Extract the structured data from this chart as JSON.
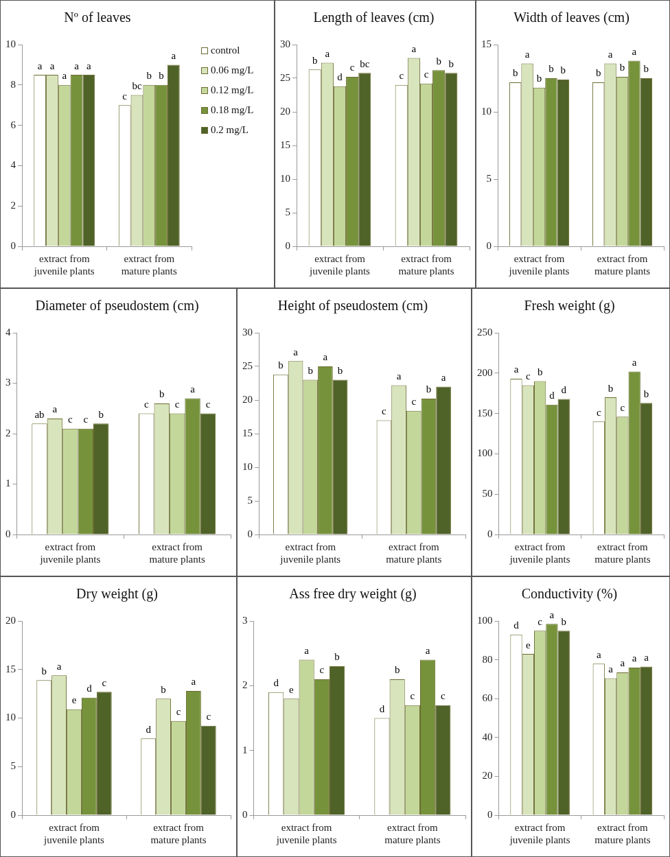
{
  "chart_data": [
    {
      "type": "bar",
      "title": "Nº of leaves",
      "categories": [
        "extract from juvenile plants",
        "extract from mature plants"
      ],
      "ylim": [
        0,
        10
      ],
      "yticks": [
        0,
        2,
        4,
        6,
        8,
        10
      ],
      "legend": "right",
      "series": [
        {
          "name": "control",
          "color": "#ffffff",
          "values": [
            8.5,
            7
          ],
          "value_labels": [
            "a",
            "c"
          ]
        },
        {
          "name": "0.06 mg/L",
          "color": "#d8e4bc",
          "values": [
            8.5,
            7.5
          ],
          "value_labels": [
            "a",
            "bc"
          ]
        },
        {
          "name": "0.12 mg/L",
          "color": "#c4d79b",
          "values": [
            8,
            8
          ],
          "value_labels": [
            "a",
            "b"
          ]
        },
        {
          "name": "0.18 mg/L",
          "color": "#76933c",
          "values": [
            8.5,
            8
          ],
          "value_labels": [
            "a",
            "b"
          ]
        },
        {
          "name": "0.2 mg/L",
          "color": "#4f6228",
          "values": [
            8.5,
            9
          ],
          "value_labels": [
            "a",
            "a"
          ]
        }
      ]
    },
    {
      "type": "bar",
      "title": "Length of leaves (cm)",
      "categories": [
        "extract from juvenile plants",
        "extract from mature plants"
      ],
      "ylim": [
        0,
        30
      ],
      "yticks": [
        0,
        5,
        10,
        15,
        20,
        25,
        30
      ],
      "series": [
        {
          "color": "#ffffff",
          "values": [
            26.3,
            24
          ],
          "value_labels": [
            "b",
            "c"
          ]
        },
        {
          "color": "#d8e4bc",
          "values": [
            27.3,
            28
          ],
          "value_labels": [
            "a",
            "a"
          ]
        },
        {
          "color": "#c4d79b",
          "values": [
            23.8,
            24.2
          ],
          "value_labels": [
            "d",
            "c"
          ]
        },
        {
          "color": "#76933c",
          "values": [
            25.2,
            26.2
          ],
          "value_labels": [
            "c",
            "b"
          ]
        },
        {
          "color": "#4f6228",
          "values": [
            25.8,
            25.8
          ],
          "value_labels": [
            "bc",
            "b"
          ]
        }
      ]
    },
    {
      "type": "bar",
      "title": "Width of leaves (cm)",
      "categories": [
        "extract from juvenile plants",
        "extract from mature plants"
      ],
      "ylim": [
        0,
        15
      ],
      "yticks": [
        0,
        5,
        10,
        15
      ],
      "series": [
        {
          "color": "#ffffff",
          "values": [
            12.2,
            12.2
          ],
          "value_labels": [
            "b",
            "b"
          ]
        },
        {
          "color": "#d8e4bc",
          "values": [
            13.6,
            13.6
          ],
          "value_labels": [
            "a",
            "a"
          ]
        },
        {
          "color": "#c4d79b",
          "values": [
            11.8,
            12.6
          ],
          "value_labels": [
            "b",
            "b"
          ]
        },
        {
          "color": "#76933c",
          "values": [
            12.5,
            13.8
          ],
          "value_labels": [
            "b",
            "a"
          ]
        },
        {
          "color": "#4f6228",
          "values": [
            12.4,
            12.5
          ],
          "value_labels": [
            "b",
            "b"
          ]
        }
      ]
    },
    {
      "type": "bar",
      "title": "Diameter of pseudostem (cm)",
      "categories": [
        "extract from juvenile plants",
        "extract from mature plants"
      ],
      "ylim": [
        0,
        4
      ],
      "yticks": [
        0,
        1,
        2,
        3,
        4
      ],
      "series": [
        {
          "color": "#ffffff",
          "values": [
            2.2,
            2.4
          ],
          "value_labels": [
            "ab",
            "c"
          ]
        },
        {
          "color": "#d8e4bc",
          "values": [
            2.3,
            2.6
          ],
          "value_labels": [
            "a",
            "b"
          ]
        },
        {
          "color": "#c4d79b",
          "values": [
            2.1,
            2.4
          ],
          "value_labels": [
            "c",
            "c"
          ]
        },
        {
          "color": "#76933c",
          "values": [
            2.1,
            2.7
          ],
          "value_labels": [
            "c",
            "a"
          ]
        },
        {
          "color": "#4f6228",
          "values": [
            2.2,
            2.4
          ],
          "value_labels": [
            "b",
            "c"
          ]
        }
      ]
    },
    {
      "type": "bar",
      "title": "Height of pseudostem (cm)",
      "categories": [
        "extract from juvenile plants",
        "extract from mature plants"
      ],
      "ylim": [
        0,
        30
      ],
      "yticks": [
        0,
        5,
        10,
        15,
        20,
        25,
        30
      ],
      "series": [
        {
          "color": "#ffffff",
          "values": [
            23.8,
            17
          ],
          "value_labels": [
            "b",
            "c"
          ]
        },
        {
          "color": "#d8e4bc",
          "values": [
            25.8,
            22.2
          ],
          "value_labels": [
            "a",
            "a"
          ]
        },
        {
          "color": "#c4d79b",
          "values": [
            23,
            18.4
          ],
          "value_labels": [
            "b",
            "c"
          ]
        },
        {
          "color": "#76933c",
          "values": [
            25,
            20.2
          ],
          "value_labels": [
            "a",
            "b"
          ]
        },
        {
          "color": "#4f6228",
          "values": [
            23,
            22
          ],
          "value_labels": [
            "b",
            "a"
          ]
        }
      ]
    },
    {
      "type": "bar",
      "title": "Fresh weight (g)",
      "categories": [
        "extract from juvenile plants",
        "extract from mature plants"
      ],
      "ylim": [
        0,
        250
      ],
      "yticks": [
        0,
        50,
        100,
        150,
        200,
        250
      ],
      "series": [
        {
          "color": "#ffffff",
          "values": [
            193,
            140
          ],
          "value_labels": [
            "a",
            "c"
          ]
        },
        {
          "color": "#d8e4bc",
          "values": [
            185,
            170
          ],
          "value_labels": [
            "c",
            "b"
          ]
        },
        {
          "color": "#c4d79b",
          "values": [
            190,
            146
          ],
          "value_labels": [
            "b",
            "c"
          ]
        },
        {
          "color": "#76933c",
          "values": [
            161,
            202
          ],
          "value_labels": [
            "d",
            "a"
          ]
        },
        {
          "color": "#4f6228",
          "values": [
            168,
            163
          ],
          "value_labels": [
            "d",
            "b"
          ]
        }
      ]
    },
    {
      "type": "bar",
      "title": "Dry weight (g)",
      "categories": [
        "extract from juvenile plants",
        "extract from mature plants"
      ],
      "ylim": [
        0,
        20
      ],
      "yticks": [
        0,
        5,
        10,
        15,
        20
      ],
      "series": [
        {
          "color": "#ffffff",
          "values": [
            13.9,
            7.9
          ],
          "value_labels": [
            "b",
            "d"
          ]
        },
        {
          "color": "#d8e4bc",
          "values": [
            14.4,
            12
          ],
          "value_labels": [
            "a",
            "b"
          ]
        },
        {
          "color": "#c4d79b",
          "values": [
            10.9,
            9.7
          ],
          "value_labels": [
            "e",
            "c"
          ]
        },
        {
          "color": "#76933c",
          "values": [
            12.1,
            12.8
          ],
          "value_labels": [
            "d",
            "a"
          ]
        },
        {
          "color": "#4f6228",
          "values": [
            12.7,
            9.2
          ],
          "value_labels": [
            "c",
            "c"
          ]
        }
      ]
    },
    {
      "type": "bar",
      "title": "Ass free dry weight (g)",
      "categories": [
        "extract from juvenile plants",
        "extract from mature plants"
      ],
      "ylim": [
        0,
        3
      ],
      "yticks": [
        0,
        1,
        2,
        3
      ],
      "series": [
        {
          "color": "#ffffff",
          "values": [
            1.9,
            1.5
          ],
          "value_labels": [
            "d",
            "d"
          ]
        },
        {
          "color": "#d8e4bc",
          "values": [
            1.8,
            2.1
          ],
          "value_labels": [
            "e",
            "b"
          ]
        },
        {
          "color": "#c4d79b",
          "values": [
            2.4,
            1.7
          ],
          "value_labels": [
            "a",
            "c"
          ]
        },
        {
          "color": "#76933c",
          "values": [
            2.1,
            2.4
          ],
          "value_labels": [
            "c",
            "a"
          ]
        },
        {
          "color": "#4f6228",
          "values": [
            2.3,
            1.7
          ],
          "value_labels": [
            "b",
            "c"
          ]
        }
      ]
    },
    {
      "type": "bar",
      "title": "Conductivity (%)",
      "categories": [
        "extract from juvenile plants",
        "extract from mature plants"
      ],
      "ylim": [
        0,
        100
      ],
      "yticks": [
        0,
        20,
        40,
        60,
        80,
        100
      ],
      "series": [
        {
          "color": "#ffffff",
          "values": [
            93,
            78
          ],
          "value_labels": [
            "d",
            "a"
          ]
        },
        {
          "color": "#d8e4bc",
          "values": [
            83,
            70.5
          ],
          "value_labels": [
            "e",
            "a"
          ]
        },
        {
          "color": "#c4d79b",
          "values": [
            95,
            73.5
          ],
          "value_labels": [
            "c",
            "a"
          ]
        },
        {
          "color": "#76933c",
          "values": [
            98.5,
            76
          ],
          "value_labels": [
            "a",
            "a"
          ]
        },
        {
          "color": "#4f6228",
          "values": [
            95,
            76.5
          ],
          "value_labels": [
            "b",
            "a"
          ]
        }
      ]
    }
  ]
}
